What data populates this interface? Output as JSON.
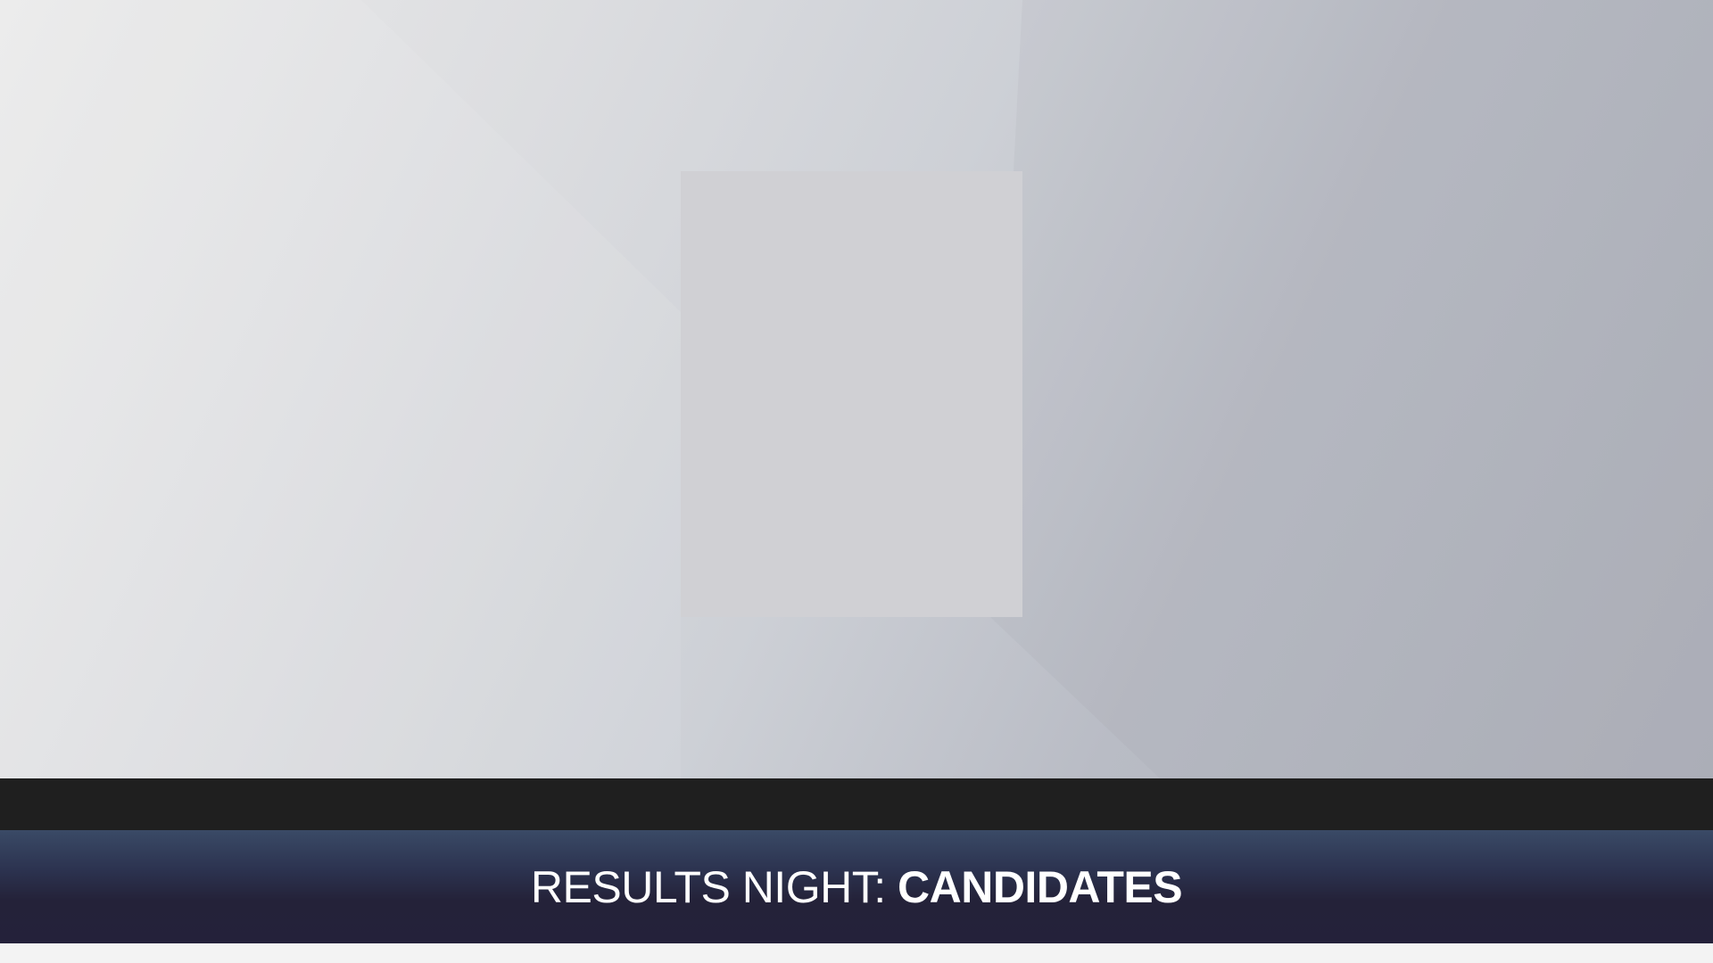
{
  "lower_third": {
    "prefix": "RESULTS NIGHT: ",
    "emphasis": "CANDIDATES"
  },
  "colors": {
    "bar_black": "#1f1f1f",
    "bar_navy_top": "#3a4a66",
    "bar_navy_bottom": "#24213a",
    "text": "#ffffff",
    "placeholder": "#d0d0d4"
  }
}
